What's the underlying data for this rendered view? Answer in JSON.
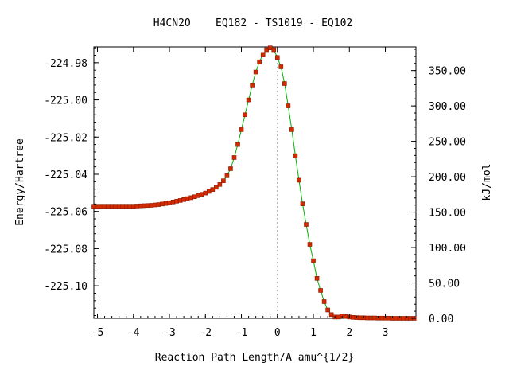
{
  "chart_data": {
    "type": "line",
    "title": "H4CN2O    EQ182 - TS1019 - EQ102",
    "xlabel": "Reaction Path Length/A amu^{1/2}",
    "ylabel": "Energy/Hartree",
    "y2label": "kJ/mol",
    "xlim": [
      -5.1,
      3.85
    ],
    "ylim": [
      -225.1175,
      -224.9715
    ],
    "y2_zero_hartree": -225.1175,
    "hartree_to_kj": 2625.5,
    "x_ticks": [
      -5,
      -4,
      -3,
      -2,
      -1,
      0,
      1,
      2,
      3
    ],
    "x_tick_labels": [
      "-5",
      "-4",
      "-3",
      "-2",
      "-1",
      "0",
      "1",
      "2",
      "3"
    ],
    "y_ticks": [
      -224.98,
      -225.0,
      -225.02,
      -225.04,
      -225.06,
      -225.08,
      -225.1
    ],
    "y_tick_labels": [
      "-224.98",
      "-225.00",
      "-225.02",
      "-225.04",
      "-225.06",
      "-225.08",
      "-225.10"
    ],
    "y2_ticks": [
      0,
      50,
      100,
      150,
      200,
      250,
      300,
      350
    ],
    "y2_tick_labels": [
      "0.00",
      "50.00",
      "100.00",
      "150.00",
      "200.00",
      "250.00",
      "300.00",
      "350.00"
    ],
    "colors": {
      "line": "#00b000",
      "points": "#d42a00",
      "zero_marker": "#999999"
    },
    "grid": false,
    "series": [
      {
        "x": [
          -5.1,
          -5.0,
          -4.9,
          -4.8,
          -4.7,
          -4.6,
          -4.5,
          -4.4,
          -4.3,
          -4.2,
          -4.1,
          -4.0,
          -3.9,
          -3.8,
          -3.7,
          -3.6,
          -3.5,
          -3.4,
          -3.3,
          -3.2,
          -3.1,
          -3.0,
          -2.9,
          -2.8,
          -2.7,
          -2.6,
          -2.5,
          -2.4,
          -2.3,
          -2.2,
          -2.1,
          -2.0,
          -1.9,
          -1.8,
          -1.7,
          -1.6,
          -1.5,
          -1.4,
          -1.3,
          -1.2,
          -1.1,
          -1.0,
          -0.9,
          -0.8,
          -0.7,
          -0.6,
          -0.5,
          -0.4,
          -0.3,
          -0.2,
          -0.1,
          0.0,
          0.1,
          0.2,
          0.3,
          0.4,
          0.5,
          0.6,
          0.7,
          0.8,
          0.9,
          1.0,
          1.1,
          1.2,
          1.3,
          1.4,
          1.5,
          1.6,
          1.7,
          1.8,
          1.9,
          2.0,
          2.1,
          2.2,
          2.3,
          2.4,
          2.5,
          2.6,
          2.7,
          2.8,
          2.9,
          3.0,
          3.1,
          3.2,
          3.3,
          3.4,
          3.5,
          3.6,
          3.7,
          3.8
        ],
        "y": [
          -225.0572,
          -225.0572,
          -225.0572,
          -225.0572,
          -225.0572,
          -225.0572,
          -225.0572,
          -225.0572,
          -225.0572,
          -225.0572,
          -225.0572,
          -225.0572,
          -225.0571,
          -225.057,
          -225.0569,
          -225.0568,
          -225.0567,
          -225.0565,
          -225.0563,
          -225.056,
          -225.0557,
          -225.0553,
          -225.0549,
          -225.0545,
          -225.0541,
          -225.0536,
          -225.0531,
          -225.0526,
          -225.0521,
          -225.0515,
          -225.0508,
          -225.0501,
          -225.0492,
          -225.0482,
          -225.047,
          -225.0455,
          -225.0435,
          -225.0408,
          -225.037,
          -225.031,
          -225.024,
          -225.016,
          -225.008,
          -225.0,
          -224.992,
          -224.985,
          -224.9795,
          -224.9755,
          -224.973,
          -224.972,
          -224.973,
          -224.9772,
          -224.9822,
          -224.9912,
          -225.0032,
          -225.016,
          -225.03,
          -225.0432,
          -225.0559,
          -225.067,
          -225.0777,
          -225.0865,
          -225.096,
          -225.1025,
          -225.1085,
          -225.113,
          -225.1155,
          -225.1168,
          -225.1168,
          -225.1163,
          -225.1165,
          -225.1168,
          -225.117,
          -225.1171,
          -225.1172,
          -225.1172,
          -225.1173,
          -225.1173,
          -225.1173,
          -225.1174,
          -225.1174,
          -225.1174,
          -225.1174,
          -225.1175,
          -225.1175,
          -225.1175,
          -225.1175,
          -225.1175,
          -225.1175,
          -225.1175
        ]
      }
    ]
  }
}
